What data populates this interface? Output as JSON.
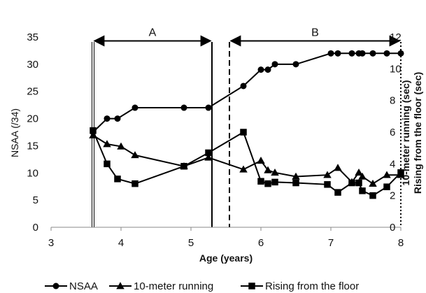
{
  "chart_data": {
    "type": "line",
    "xlabel": "Age (years)",
    "ylabel_left": "NSAA (/34)",
    "ylabel_right": [
      "10-meter running (sec)",
      "Rising from the floor (sec)"
    ],
    "xlim": [
      3,
      8
    ],
    "xticks": [
      3,
      4,
      5,
      6,
      7,
      8
    ],
    "ylim_left": [
      0,
      35
    ],
    "yticks_left": [
      0,
      5,
      10,
      15,
      20,
      25,
      30,
      35
    ],
    "ylim_right": [
      0,
      12
    ],
    "yticks_right": [
      0,
      2,
      4,
      6,
      8,
      10,
      12
    ],
    "grid": false,
    "legend_position": "bottom",
    "series": [
      {
        "name": "NSAA",
        "axis": "left",
        "marker": "circle",
        "points": [
          [
            3.6,
            17.5
          ],
          [
            3.8,
            20
          ],
          [
            3.95,
            20
          ],
          [
            4.2,
            22
          ],
          [
            4.9,
            22
          ],
          [
            5.25,
            22
          ],
          [
            5.75,
            26
          ],
          [
            6.0,
            29
          ],
          [
            6.1,
            29
          ],
          [
            6.2,
            30
          ],
          [
            6.5,
            30
          ],
          [
            7.0,
            32
          ],
          [
            7.1,
            32
          ],
          [
            7.3,
            32
          ],
          [
            7.4,
            32
          ],
          [
            7.45,
            32
          ],
          [
            7.6,
            32
          ],
          [
            7.8,
            32
          ],
          [
            8.0,
            32
          ]
        ]
      },
      {
        "name": "10-meter running",
        "axis": "right",
        "marker": "triangle",
        "points": [
          [
            3.6,
            5.8
          ],
          [
            3.8,
            5.25
          ],
          [
            4.0,
            5.1
          ],
          [
            4.2,
            4.55
          ],
          [
            4.9,
            3.85
          ],
          [
            5.25,
            4.4
          ],
          [
            5.75,
            3.65
          ],
          [
            6.0,
            4.2
          ],
          [
            6.1,
            3.6
          ],
          [
            6.2,
            3.45
          ],
          [
            6.5,
            3.2
          ],
          [
            6.95,
            3.3
          ],
          [
            7.1,
            3.75
          ],
          [
            7.3,
            2.85
          ],
          [
            7.4,
            3.45
          ],
          [
            7.45,
            3.2
          ],
          [
            7.6,
            2.75
          ],
          [
            7.8,
            3.3
          ],
          [
            8.0,
            3.3
          ]
        ]
      },
      {
        "name": "Rising from the floor",
        "axis": "right",
        "marker": "square",
        "points": [
          [
            3.6,
            6.1
          ],
          [
            3.8,
            4.0
          ],
          [
            3.95,
            3.05
          ],
          [
            4.2,
            2.75
          ],
          [
            4.9,
            3.85
          ],
          [
            5.25,
            4.7
          ],
          [
            5.75,
            6.0
          ],
          [
            6.0,
            2.9
          ],
          [
            6.1,
            2.75
          ],
          [
            6.2,
            2.85
          ],
          [
            6.5,
            2.8
          ],
          [
            6.95,
            2.7
          ],
          [
            7.1,
            2.2
          ],
          [
            7.3,
            2.8
          ],
          [
            7.4,
            2.8
          ],
          [
            7.45,
            2.3
          ],
          [
            7.6,
            2.0
          ],
          [
            7.8,
            2.55
          ],
          [
            8.0,
            3.45
          ]
        ]
      }
    ],
    "reference_lines": [
      {
        "x": 3.6,
        "style": "double"
      },
      {
        "x": 5.3,
        "style": "solid"
      },
      {
        "x": 5.55,
        "style": "dashed"
      },
      {
        "x": 8.0,
        "style": "dotted"
      }
    ],
    "annotations": [
      {
        "label": "A",
        "x_start": 3.6,
        "x_end": 5.3,
        "y": 34.3
      },
      {
        "label": "B",
        "x_start": 5.55,
        "x_end": 8.0,
        "y": 34.3
      }
    ]
  }
}
